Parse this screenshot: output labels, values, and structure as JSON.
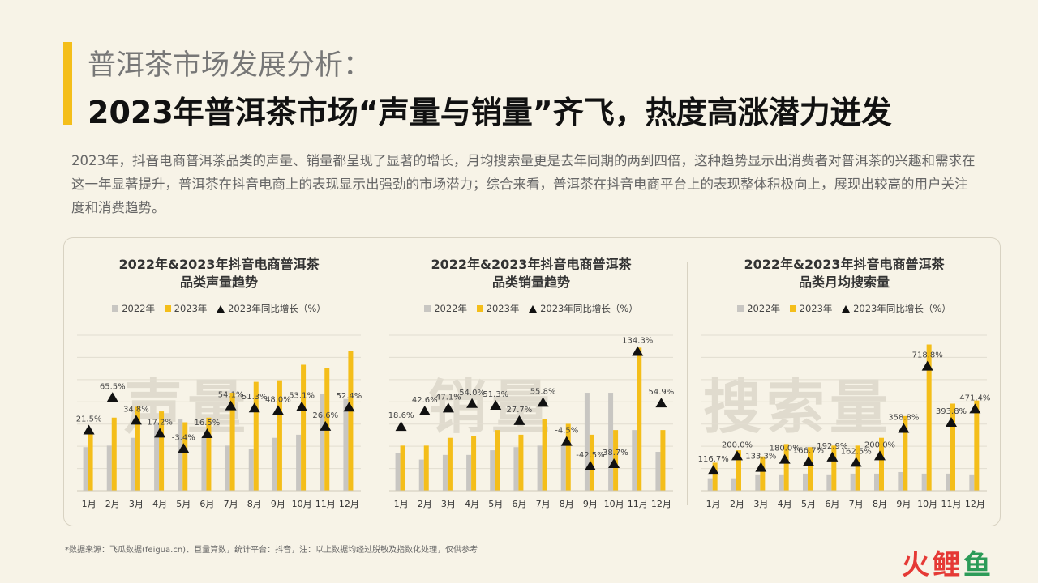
{
  "header": {
    "subtitle": "普洱茶市场发展分析：",
    "title": "2023年普洱茶市场“声量与销量”齐飞，热度高涨潜力迸发"
  },
  "intro": "2023年，抖音电商普洱茶品类的声量、销量都呈现了显著的增长，月均搜索量更是去年同期的两到四倍，这种趋势显示出消费者对普洱茶的兴趣和需求在这一年显著提升，普洱茶在抖音电商上的表现显示出强劲的市场潜力；综合来看，普洱茶在抖音电商平台上的表现整体积极向上，展现出较高的用户关注度和消费趋势。",
  "legend": {
    "s2022": "2022年",
    "s2023": "2023年",
    "growth": "2023年同比增长（%）"
  },
  "colors": {
    "s2022": "#c8c6c2",
    "s2023": "#f4be1a",
    "marker": "#111111",
    "accent": "#f4be1a"
  },
  "chart_data": [
    {
      "type": "bar",
      "title_line1": "2022年&2023年抖音电商普洱茶",
      "title_line2": "品类声量趋势",
      "watermark": "声量",
      "categories": [
        "1月",
        "2月",
        "3月",
        "4月",
        "5月",
        "6月",
        "7月",
        "8月",
        "9月",
        "10月",
        "11月",
        "12月"
      ],
      "series": [
        {
          "name": "2022年",
          "values": [
            28,
            29,
            34,
            44,
            46,
            34,
            29,
            27,
            34,
            36,
            62,
            59
          ]
        },
        {
          "name": "2023年",
          "values": [
            38,
            47,
            54,
            51,
            44,
            47,
            63,
            70,
            71,
            81,
            79,
            90
          ]
        }
      ],
      "growth": [
        21.5,
        65.5,
        34.8,
        17.2,
        -3.4,
        16.5,
        54.1,
        51.3,
        48.0,
        53.1,
        26.6,
        52.4
      ],
      "growth_labels": [
        "21.5%",
        "65.5%",
        "34.8%",
        "17.2%",
        "-3.4%",
        "16.5%",
        "54.1%",
        "51.3%",
        "48.0%",
        "53.1%",
        "26.6%",
        "52.4%"
      ],
      "ylim": [
        0,
        100
      ],
      "growth_lim": [
        -60,
        150
      ]
    },
    {
      "type": "bar",
      "title_line1": "2022年&2023年抖音电商普洱茶",
      "title_line2": "品类销量趋势",
      "watermark": "销量",
      "categories": [
        "1月",
        "2月",
        "3月",
        "4月",
        "5月",
        "6月",
        "7月",
        "8月",
        "9月",
        "10月",
        "11月",
        "12月"
      ],
      "series": [
        {
          "name": "2022年",
          "values": [
            24,
            20,
            23,
            23,
            26,
            28,
            29,
            30,
            63,
            63,
            39,
            25
          ]
        },
        {
          "name": "2023年",
          "values": [
            29,
            29,
            34,
            35,
            39,
            36,
            46,
            43,
            36,
            39,
            92,
            39
          ]
        }
      ],
      "growth": [
        18.6,
        42.6,
        47.1,
        54.0,
        51.3,
        27.7,
        55.8,
        -4.5,
        -42.5,
        -38.7,
        134.3,
        54.9
      ],
      "growth_labels": [
        "18.6%",
        "42.6%",
        "47.1%",
        "54.0%",
        "51.3%",
        "27.7%",
        "55.8%",
        "-4.5%",
        "-42.5%",
        "-38.7%",
        "134.3%",
        "54.9%"
      ],
      "ylim": [
        0,
        100
      ],
      "growth_lim": [
        -80,
        160
      ]
    },
    {
      "type": "bar",
      "title_line1": "2022年&2023年抖音电商普洱茶",
      "title_line2": "品类月均搜索量",
      "watermark": "搜索量",
      "categories": [
        "1月",
        "2月",
        "3月",
        "4月",
        "5月",
        "6月",
        "7月",
        "8月",
        "9月",
        "10月",
        "11月",
        "12月"
      ],
      "series": [
        {
          "name": "2022年",
          "values": [
            8,
            8,
            10,
            10,
            11,
            10,
            11,
            11,
            12,
            11,
            11,
            10
          ]
        },
        {
          "name": "2023年",
          "values": [
            18,
            26,
            22,
            30,
            28,
            29,
            29,
            34,
            48,
            94,
            56,
            58
          ]
        }
      ],
      "growth": [
        116.7,
        200.0,
        133.3,
        180.0,
        166.7,
        192.9,
        162.5,
        200.0,
        358.8,
        718.8,
        393.8,
        471.4
      ],
      "growth_labels": [
        "116.7%",
        "200.0%",
        "133.3%",
        "180.0%",
        "166.7%",
        "192.9%",
        "162.5%",
        "200.0%",
        "358.8%",
        "718.8%",
        "393.8%",
        "471.4%"
      ],
      "ylim": [
        0,
        100
      ],
      "growth_lim": [
        0,
        900
      ]
    }
  ],
  "footnote": "*数据来源：飞瓜数据(feigua.cn)、巨量算数，统计平台：抖音，注：以上数据均经过脱敏及指数化处理，仅供参考",
  "logo": {
    "part1": "火",
    "part2": "鲤",
    "part3": "鱼"
  }
}
